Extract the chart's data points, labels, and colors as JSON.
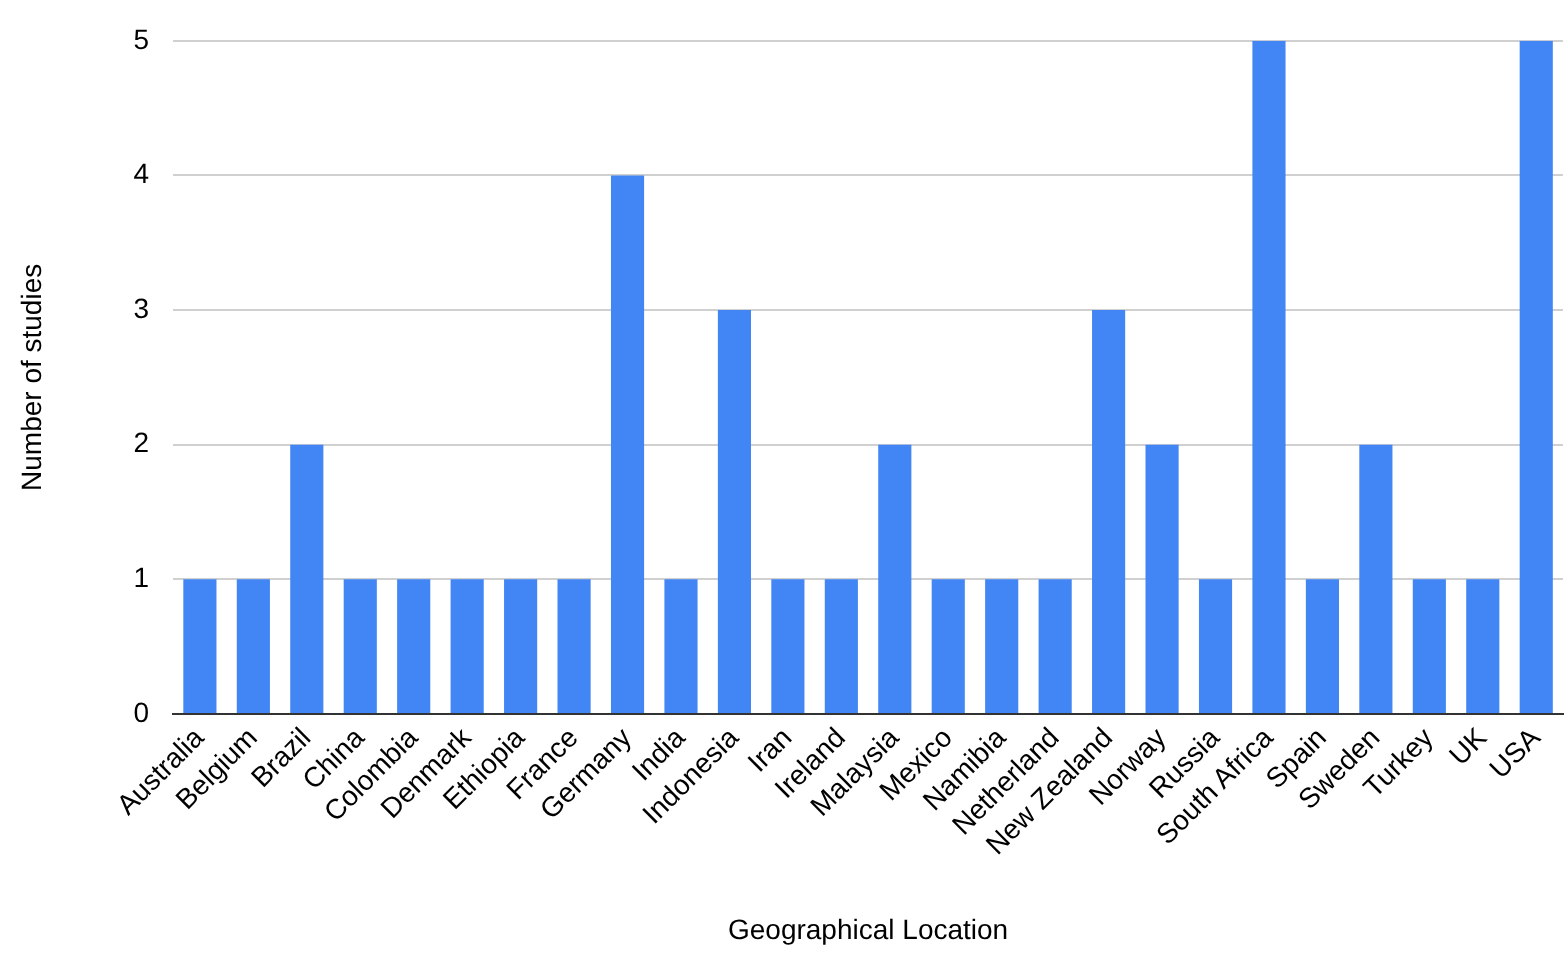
{
  "chart_data": {
    "type": "bar",
    "xlabel": "Geographical Location",
    "ylabel": "Number of studies",
    "categories": [
      "Australia",
      "Belgium",
      "Brazil",
      "China",
      "Colombia",
      "Denmark",
      "Ethiopia",
      "France",
      "Germany",
      "India",
      "Indonesia",
      "Iran",
      "Ireland",
      "Malaysia",
      "Mexico",
      "Namibia",
      "Netherland",
      "New Zealand",
      "Norway",
      "Russia",
      "South Africa",
      "Spain",
      "Sweden",
      "Turkey",
      "UK",
      "USA"
    ],
    "values": [
      1,
      1,
      2,
      1,
      1,
      1,
      1,
      1,
      4,
      1,
      3,
      1,
      1,
      2,
      1,
      1,
      1,
      3,
      2,
      1,
      5,
      1,
      2,
      1,
      1,
      5
    ],
    "color": "#4285f4",
    "ylim": [
      0,
      5
    ],
    "yticks": [
      0,
      1,
      2,
      3,
      4,
      5
    ],
    "grid": "y",
    "legend": false
  }
}
